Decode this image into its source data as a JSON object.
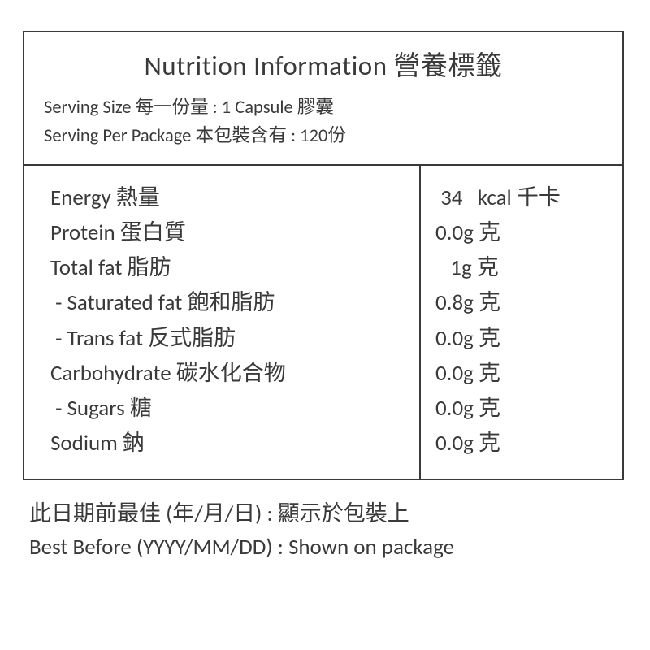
{
  "title": "Nutrition Information 營養標籤",
  "serving_size": "Serving Size 每一份量 : 1 Capsule 膠囊",
  "serving_per_package": "Serving Per Package 本包裝含有 : 120份",
  "nutrients": {
    "energy": {
      "label": "Energy 熱量",
      "value": " 34   kcal 千卡"
    },
    "protein": {
      "label": "Protein 蛋白質",
      "value": "0.0g 克"
    },
    "total_fat": {
      "label": "Total fat 脂肪",
      "value": "   1g 克"
    },
    "saturated_fat": {
      "label": " - Saturated fat 飽和脂肪",
      "value": "0.8g 克"
    },
    "trans_fat": {
      "label": " - Trans fat 反式脂肪",
      "value": "0.0g 克"
    },
    "carbohydrate": {
      "label": "Carbohydrate 碳水化合物",
      "value": "0.0g 克"
    },
    "sugars": {
      "label": " - Sugars 糖",
      "value": "0.0g 克"
    },
    "sodium": {
      "label": "Sodium 鈉",
      "value": "0.0g 克"
    }
  },
  "footer": {
    "line1": "此日期前最佳 (年/月/日) : 顯示於包裝上",
    "line2": "Best Before (YYYY/MM/DD) : Shown on package"
  },
  "style": {
    "border_color": "#3a3a3a",
    "text_color": "#3a3a3a",
    "background_color": "#ffffff",
    "title_fontsize": 33,
    "body_fontsize": 27,
    "serving_fontsize": 22.5
  }
}
